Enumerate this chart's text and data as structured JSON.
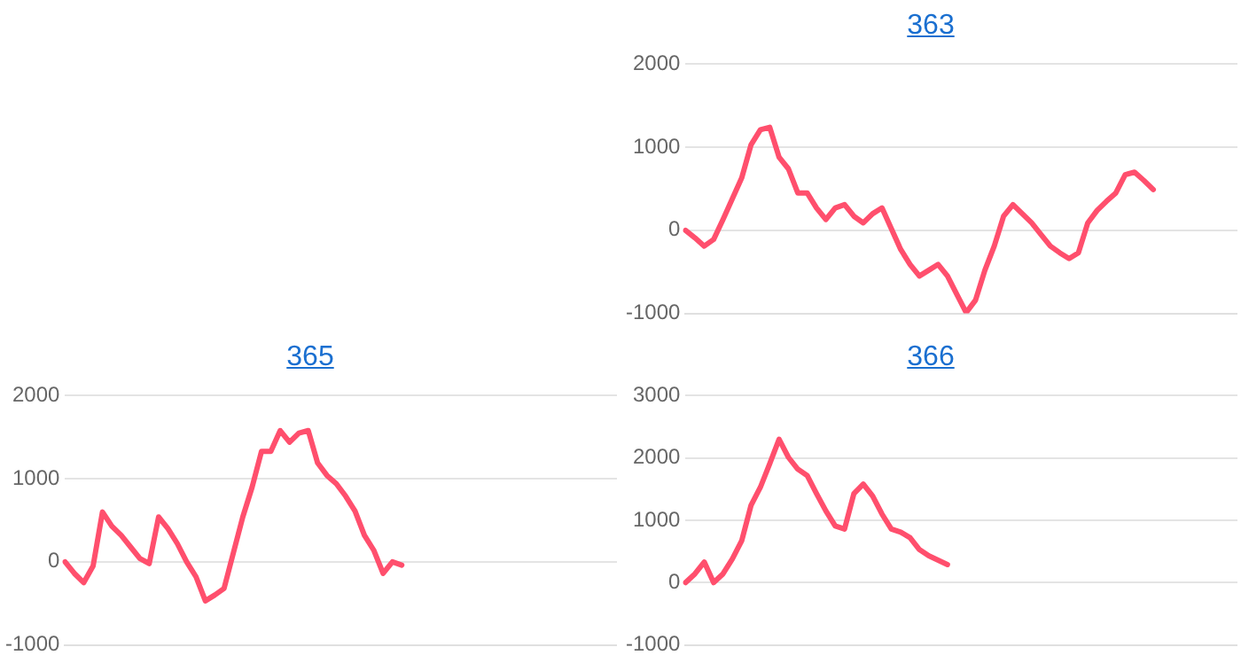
{
  "chart_data": [
    {
      "type": "line",
      "title": "363",
      "categories": [
        null,
        null,
        null,
        null,
        null,
        null,
        null,
        null,
        null,
        null,
        null,
        null,
        null,
        null,
        null,
        null,
        null,
        null,
        null,
        null,
        null,
        null,
        null,
        null,
        null,
        null,
        null,
        null,
        null,
        null,
        null,
        null,
        null,
        null,
        null,
        null,
        null,
        null,
        null,
        null,
        null,
        null,
        null,
        null,
        null,
        null,
        null,
        null,
        null,
        null,
        null,
        null,
        null,
        null,
        null,
        null,
        null,
        null,
        null,
        null
      ],
      "series": [
        {
          "color": "#ff4f6d",
          "values": [
            0,
            -90,
            -190,
            -110,
            130,
            380,
            630,
            1030,
            1210,
            1240,
            880,
            740,
            450,
            450,
            270,
            130,
            270,
            310,
            170,
            90,
            200,
            270,
            20,
            -230,
            -410,
            -550,
            -480,
            -410,
            -550,
            -770,
            -990,
            -840,
            -480,
            -190,
            170,
            310,
            200,
            90,
            -50,
            -190,
            -270,
            -340,
            -270,
            90,
            240,
            350,
            450,
            670,
            700,
            600,
            490,
            null,
            null,
            null,
            null,
            null,
            null,
            null,
            null,
            null
          ]
        }
      ],
      "ylim": [
        -1000,
        2000
      ],
      "yticks": [
        -1000,
        0,
        1000,
        2000
      ],
      "grid": "y",
      "tick_labels": "y",
      "marker": "none"
    },
    {
      "type": "line",
      "title": "365",
      "categories": [
        null,
        null,
        null,
        null,
        null,
        null,
        null,
        null,
        null,
        null,
        null,
        null,
        null,
        null,
        null,
        null,
        null,
        null,
        null,
        null,
        null,
        null,
        null,
        null,
        null,
        null,
        null,
        null,
        null,
        null,
        null,
        null,
        null,
        null,
        null,
        null,
        null,
        null,
        null,
        null,
        null,
        null,
        null,
        null,
        null,
        null,
        null,
        null,
        null,
        null,
        null,
        null,
        null,
        null,
        null,
        null,
        null,
        null,
        null,
        null
      ],
      "series": [
        {
          "color": "#ff4f6d",
          "values": [
            0,
            -140,
            -250,
            -50,
            600,
            430,
            320,
            180,
            40,
            -20,
            540,
            400,
            220,
            0,
            -180,
            -470,
            -400,
            -320,
            110,
            540,
            900,
            1330,
            1330,
            1580,
            1440,
            1550,
            1580,
            1190,
            1040,
            940,
            790,
            610,
            320,
            140,
            -140,
            0,
            -40,
            null,
            null,
            null,
            null,
            null,
            null,
            null,
            null,
            null,
            null,
            null,
            null,
            null,
            null,
            null,
            null,
            null,
            null,
            null,
            null,
            null,
            null,
            null
          ]
        }
      ],
      "ylim": [
        -1000,
        2000
      ],
      "yticks": [
        -1000,
        0,
        1000,
        2000
      ],
      "grid": "y",
      "tick_labels": "y",
      "marker": "none"
    },
    {
      "type": "line",
      "title": "366",
      "categories": [
        null,
        null,
        null,
        null,
        null,
        null,
        null,
        null,
        null,
        null,
        null,
        null,
        null,
        null,
        null,
        null,
        null,
        null,
        null,
        null,
        null,
        null,
        null,
        null,
        null,
        null,
        null,
        null,
        null,
        null,
        null,
        null,
        null,
        null,
        null,
        null,
        null,
        null,
        null,
        null,
        null,
        null,
        null,
        null,
        null,
        null,
        null,
        null,
        null,
        null,
        null,
        null,
        null,
        null,
        null,
        null,
        null,
        null,
        null,
        null
      ],
      "series": [
        {
          "color": "#ff4f6d",
          "values": [
            0,
            140,
            330,
            0,
            140,
            380,
            670,
            1240,
            1530,
            1910,
            2300,
            2010,
            1820,
            1720,
            1430,
            1150,
            910,
            860,
            1430,
            1580,
            1390,
            1100,
            860,
            810,
            720,
            530,
            430,
            360,
            290,
            null,
            null,
            null,
            null,
            null,
            null,
            null,
            null,
            null,
            null,
            null,
            null,
            null,
            null,
            null,
            null,
            null,
            null,
            null,
            null,
            null,
            null,
            null,
            null,
            null,
            null,
            null,
            null,
            null,
            null,
            null
          ]
        }
      ],
      "ylim": [
        -1000,
        3000
      ],
      "yticks": [
        -1000,
        0,
        1000,
        2000,
        3000
      ],
      "grid": "y",
      "tick_labels": "y",
      "marker": "none"
    }
  ]
}
